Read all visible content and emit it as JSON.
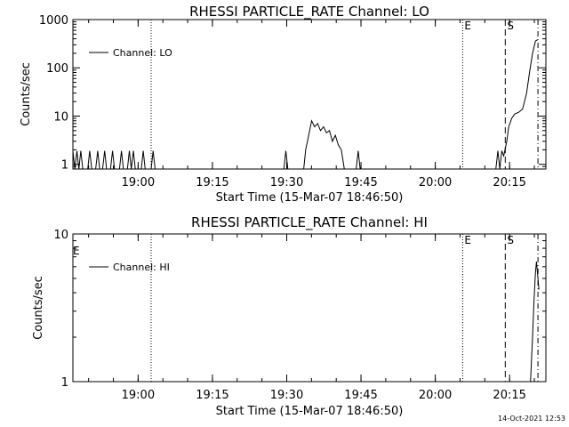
{
  "footer": {
    "timestamp": "14-Oct-2021 12:53"
  },
  "chart_data": [
    {
      "type": "line",
      "title": "RHESSI PARTICLE_RATE Channel: LO",
      "xlabel": "Start Time (15-Mar-07 18:46:50)",
      "ylabel": "Counts/sec",
      "yscale": "log",
      "xlim": [
        0,
        95.5
      ],
      "ylim": [
        0.8,
        1000
      ],
      "x_ticks": [
        {
          "t": 13.17,
          "label": "19:00"
        },
        {
          "t": 28.17,
          "label": "19:15"
        },
        {
          "t": 43.17,
          "label": "19:30"
        },
        {
          "t": 58.17,
          "label": "19:45"
        },
        {
          "t": 73.17,
          "label": "20:00"
        },
        {
          "t": 88.17,
          "label": "20:15"
        }
      ],
      "y_ticks": [
        {
          "v": 1,
          "label": "1"
        },
        {
          "v": 10,
          "label": "10"
        },
        {
          "v": 100,
          "label": "100"
        },
        {
          "v": 1000,
          "label": "1000"
        }
      ],
      "vlines": [
        {
          "t": 15.8,
          "style": "dotted",
          "label": ""
        },
        {
          "t": 78.7,
          "style": "dotted",
          "label": "E"
        },
        {
          "t": 87.3,
          "style": "dashed",
          "label": "S"
        },
        {
          "t": 93.9,
          "style": "dashdot",
          "label": ""
        }
      ],
      "edge_marker": "",
      "legend": {
        "position": "top-left",
        "label": "Channel: LO"
      },
      "series": [
        {
          "name": "Channel: LO",
          "points": [
            [
              0,
              1.9
            ],
            [
              0.4,
              0.8
            ],
            [
              0.8,
              1.9
            ],
            [
              1.2,
              0.8
            ],
            [
              1.6,
              1.9
            ],
            [
              2.0,
              0.8
            ],
            [
              3.0,
              0.8
            ],
            [
              3.4,
              1.9
            ],
            [
              3.8,
              0.8
            ],
            [
              4.6,
              0.8
            ],
            [
              5.0,
              1.9
            ],
            [
              5.4,
              0.8
            ],
            [
              6.0,
              0.8
            ],
            [
              6.4,
              1.9
            ],
            [
              6.8,
              0.8
            ],
            [
              7.6,
              0.8
            ],
            [
              8.0,
              1.9
            ],
            [
              8.4,
              0.8
            ],
            [
              9.4,
              0.8
            ],
            [
              9.8,
              1.9
            ],
            [
              10.2,
              0.8
            ],
            [
              11.0,
              0.8
            ],
            [
              11.4,
              1.9
            ],
            [
              11.8,
              0.8
            ],
            [
              12.2,
              1.9
            ],
            [
              12.6,
              0.8
            ],
            [
              13.8,
              0.8
            ],
            [
              14.2,
              1.9
            ],
            [
              14.6,
              0.8
            ],
            [
              15.8,
              0.8
            ],
            [
              16.2,
              1.9
            ],
            [
              16.6,
              0.8
            ],
            [
              26.0,
              0.8
            ],
            [
              42.6,
              0.8
            ],
            [
              43.0,
              1.9
            ],
            [
              43.4,
              0.8
            ],
            [
              46.6,
              0.8
            ],
            [
              47.0,
              2
            ],
            [
              47.6,
              4
            ],
            [
              48.2,
              8
            ],
            [
              48.8,
              6
            ],
            [
              49.4,
              7
            ],
            [
              50.0,
              5
            ],
            [
              50.6,
              6
            ],
            [
              51.2,
              4.5
            ],
            [
              51.8,
              5
            ],
            [
              52.4,
              3
            ],
            [
              53.0,
              4
            ],
            [
              53.6,
              2.5
            ],
            [
              54.2,
              2
            ],
            [
              54.8,
              0.8
            ],
            [
              57.2,
              0.8
            ],
            [
              57.6,
              1.9
            ],
            [
              58.0,
              0.8
            ],
            [
              80.0,
              0.8
            ],
            [
              85.4,
              0.8
            ],
            [
              85.8,
              1.9
            ],
            [
              86.2,
              0.8
            ],
            [
              86.6,
              1.9
            ],
            [
              87.0,
              1.5
            ],
            [
              87.6,
              3
            ],
            [
              88.0,
              6
            ],
            [
              88.6,
              9
            ],
            [
              89.2,
              11
            ],
            [
              90.0,
              12
            ],
            [
              90.8,
              14
            ],
            [
              91.6,
              30
            ],
            [
              92.2,
              80
            ],
            [
              92.8,
              200
            ],
            [
              93.4,
              360
            ],
            [
              93.8,
              380
            ]
          ]
        }
      ]
    },
    {
      "type": "line",
      "title": "RHESSI PARTICLE_RATE Channel: HI",
      "xlabel": "Start Time (15-Mar-07 18:46:50)",
      "ylabel": "Counts/sec",
      "yscale": "log",
      "xlim": [
        0,
        95.5
      ],
      "ylim": [
        1,
        10
      ],
      "x_ticks": [
        {
          "t": 13.17,
          "label": "19:00"
        },
        {
          "t": 28.17,
          "label": "19:15"
        },
        {
          "t": 43.17,
          "label": "19:30"
        },
        {
          "t": 58.17,
          "label": "19:45"
        },
        {
          "t": 73.17,
          "label": "20:00"
        },
        {
          "t": 88.17,
          "label": "20:15"
        }
      ],
      "y_ticks": [
        {
          "v": 1,
          "label": "1"
        },
        {
          "v": 10,
          "label": "10"
        }
      ],
      "vlines": [
        {
          "t": 15.8,
          "style": "dotted",
          "label": ""
        },
        {
          "t": 78.7,
          "style": "dotted",
          "label": "E"
        },
        {
          "t": 87.3,
          "style": "dashed",
          "label": "S"
        },
        {
          "t": 93.9,
          "style": "dashdot",
          "label": ""
        }
      ],
      "edge_marker": "E",
      "legend": {
        "position": "top-left",
        "label": "Channel: HI"
      },
      "series": [
        {
          "name": "Channel: HI",
          "points": [
            [
              92.4,
              1.0
            ],
            [
              92.8,
              2.0
            ],
            [
              93.1,
              3.5
            ],
            [
              93.4,
              5.5
            ],
            [
              93.6,
              6.5
            ],
            [
              93.9,
              5.0
            ],
            [
              94.1,
              4.2
            ]
          ]
        }
      ]
    }
  ]
}
